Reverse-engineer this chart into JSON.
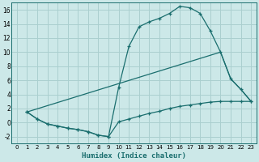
{
  "background_color": "#cce8e8",
  "grid_color": "#aacfcf",
  "line_color": "#1a6e6e",
  "xlabel": "Humidex (Indice chaleur)",
  "xlim": [
    -0.5,
    23.5
  ],
  "ylim": [
    -3.0,
    17.0
  ],
  "xticks": [
    0,
    1,
    2,
    3,
    4,
    5,
    6,
    7,
    8,
    9,
    10,
    11,
    12,
    13,
    14,
    15,
    16,
    17,
    18,
    19,
    20,
    21,
    22,
    23
  ],
  "yticks": [
    -2,
    0,
    2,
    4,
    6,
    8,
    10,
    12,
    14,
    16
  ],
  "line1_x": [
    1,
    2,
    3,
    4,
    5,
    6,
    7,
    8,
    9,
    10,
    11,
    12,
    13,
    14,
    15,
    16,
    17,
    18,
    19,
    20,
    21,
    22,
    23
  ],
  "line1_y": [
    1.5,
    0.5,
    -0.2,
    -0.5,
    -0.8,
    -1.0,
    -1.3,
    -1.8,
    -2.0,
    5.0,
    10.8,
    13.6,
    14.3,
    14.8,
    15.5,
    16.5,
    16.3,
    15.5,
    13.0,
    10.0,
    6.2,
    4.7,
    3.0
  ],
  "line2_x": [
    1,
    20,
    21,
    22,
    23
  ],
  "line2_y": [
    1.5,
    10.0,
    6.2,
    4.7,
    3.0
  ],
  "line3_x": [
    1,
    2,
    3,
    4,
    5,
    6,
    7,
    8,
    9,
    10,
    11,
    12,
    13,
    14,
    15,
    16,
    17,
    18,
    19,
    20,
    21,
    22,
    23
  ],
  "line3_y": [
    1.5,
    0.5,
    -0.2,
    -0.5,
    -0.8,
    -1.0,
    -1.3,
    -1.8,
    -2.0,
    0.1,
    0.5,
    0.9,
    1.3,
    1.6,
    2.0,
    2.3,
    2.5,
    2.7,
    2.9,
    3.0,
    3.0,
    3.0,
    3.0
  ]
}
